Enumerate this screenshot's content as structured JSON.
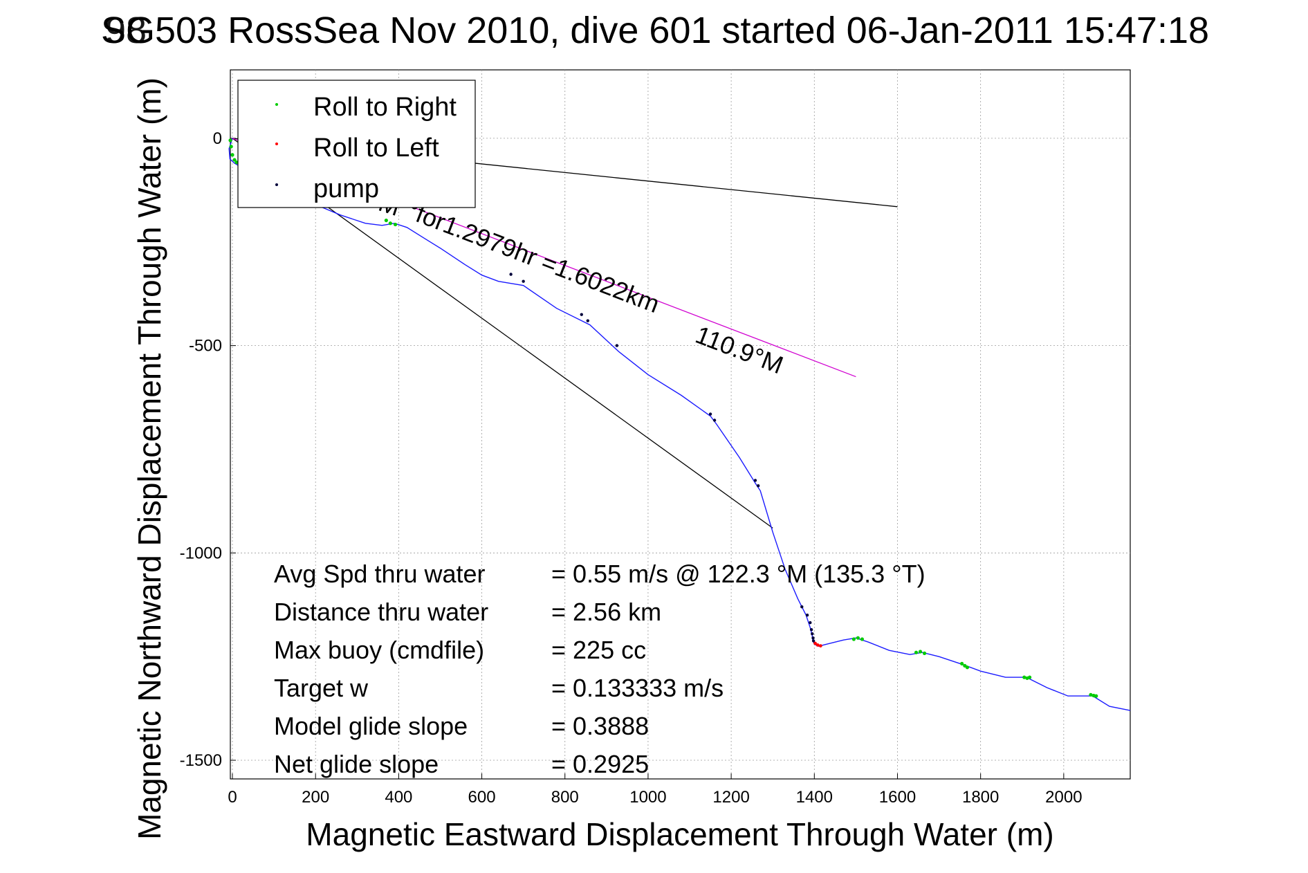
{
  "chart_data": {
    "type": "scatter",
    "title": "SG503 RossSea Nov 2010, dive 601 started 06-Jan-2011 15:47:18",
    "title_overlap_glyphs": "98",
    "xlabel": "Magnetic Eastward Displacement Through Water (m)",
    "ylabel": "Magnetic Northward Displacement Through Water (m)",
    "xlim": [
      -5,
      2160
    ],
    "ylim": [
      -1545,
      165
    ],
    "xticks": [
      0,
      200,
      400,
      600,
      800,
      1000,
      1200,
      1400,
      1600,
      1800,
      2000
    ],
    "yticks": [
      0,
      -500,
      -1000,
      -1500
    ],
    "grid": true,
    "legend_position": "top-left",
    "legend": [
      {
        "label": "Roll to Right",
        "color": "#00cc00"
      },
      {
        "label": "Roll to Left",
        "color": "#ff0000"
      },
      {
        "label": "pump",
        "color": "#00003a"
      }
    ],
    "colors": {
      "track": "#1a1aff",
      "cone": "#000000",
      "heading": "#d000d0"
    },
    "track": {
      "x": [
        0,
        -8,
        -6,
        5,
        30,
        90,
        150,
        200,
        260,
        320,
        360,
        390,
        420,
        460,
        500,
        560,
        600,
        640,
        670,
        700,
        780,
        840,
        860,
        930,
        1000,
        1080,
        1150,
        1165,
        1220,
        1260,
        1270,
        1300,
        1330,
        1360,
        1380,
        1390,
        1395,
        1396,
        1400,
        1410,
        1430,
        1470,
        1500,
        1530,
        1580,
        1630,
        1660,
        1700,
        1760,
        1800,
        1860,
        1910,
        1960,
        2010,
        2070,
        2110,
        2160
      ],
      "y": [
        0,
        -25,
        -50,
        -60,
        -75,
        -100,
        -135,
        -160,
        -185,
        -205,
        -210,
        -205,
        -215,
        -240,
        -265,
        -305,
        -330,
        -345,
        -350,
        -355,
        -410,
        -440,
        -450,
        -515,
        -570,
        -620,
        -670,
        -690,
        -770,
        -835,
        -850,
        -950,
        -1040,
        -1110,
        -1150,
        -1180,
        -1200,
        -1210,
        -1220,
        -1225,
        -1220,
        -1210,
        -1205,
        -1215,
        -1235,
        -1245,
        -1240,
        -1250,
        -1270,
        -1285,
        -1300,
        -1300,
        -1325,
        -1345,
        -1345,
        -1370,
        -1380
      ]
    },
    "roll_right_points": {
      "x": [
        -5,
        -3,
        0,
        5,
        10,
        370,
        380,
        392,
        1495,
        1505,
        1515,
        1645,
        1655,
        1665,
        1755,
        1762,
        1768,
        1905,
        1912,
        1918,
        2065,
        2072,
        2078
      ],
      "y": [
        -5,
        -20,
        -40,
        -52,
        -58,
        -198,
        -205,
        -208,
        -1208,
        -1205,
        -1208,
        -1240,
        -1238,
        -1242,
        -1267,
        -1272,
        -1276,
        -1300,
        -1302,
        -1300,
        -1342,
        -1344,
        -1345
      ]
    },
    "roll_left_points": {
      "x": [
        1402,
        1408,
        1415
      ],
      "y": [
        -1218,
        -1222,
        -1224
      ]
    },
    "pump_points": {
      "x": [
        670,
        700,
        840,
        855,
        925,
        1150,
        1160,
        1258,
        1265,
        1370,
        1383,
        1390,
        1393,
        1395,
        1397,
        1398
      ],
      "y": [
        -328,
        -345,
        -425,
        -440,
        -500,
        -665,
        -680,
        -825,
        -838,
        -1130,
        -1150,
        -1168,
        -1185,
        -1195,
        -1205,
        -1212
      ]
    },
    "cone_line_1": {
      "x": [
        0,
        1600
      ],
      "y": [
        0,
        -165
      ]
    },
    "cone_line_2": {
      "x": [
        0,
        1300
      ],
      "y": [
        0,
        -940
      ]
    },
    "heading_line": {
      "x": [
        0,
        1500
      ],
      "y": [
        0,
        -575
      ]
    },
    "overlay_labels": [
      {
        "text": "°M",
        "x": 325,
        "y": -165,
        "angle": 18
      },
      {
        "text": "°for1.2979hr =1.6022km",
        "x": 415,
        "y": -190,
        "angle": 21
      },
      {
        "text": "110.9°M",
        "x": 1110,
        "y": -490,
        "angle": 21
      }
    ],
    "stats": [
      {
        "label": "Avg Spd thru water",
        "value": "=  0.55 m/s @ 122.3 °M (135.3 °T)"
      },
      {
        "label": "Distance thru water",
        "value": "=  2.56 km"
      },
      {
        "label": "Max buoy (cmdfile)",
        "value": "= 225 cc"
      },
      {
        "label": "Target w",
        "value": "= 0.133333 m/s"
      },
      {
        "label": "Model glide slope",
        "value": "= 0.3888"
      },
      {
        "label": "Net glide slope",
        "value": "= 0.2925"
      }
    ]
  }
}
